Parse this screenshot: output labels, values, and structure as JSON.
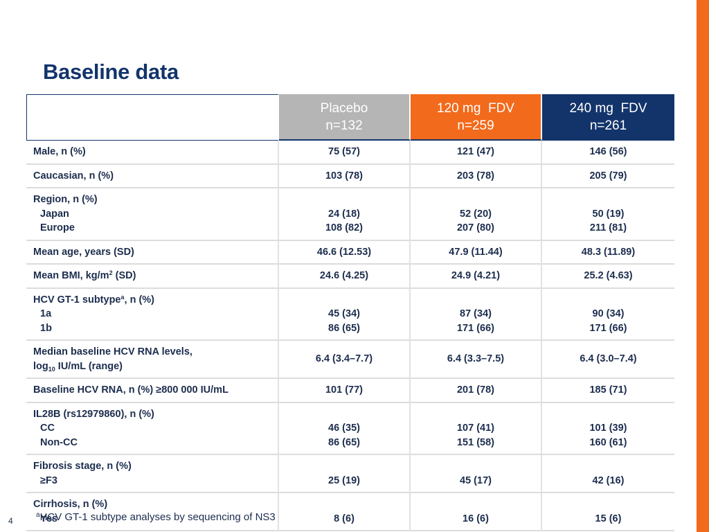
{
  "slide": {
    "title": "Baseline data",
    "page_number": "4",
    "footnote_marker": "a",
    "footnote_text": "HCV GT-1 subtype analyses by sequencing of NS3",
    "colors": {
      "title": "#13346b",
      "accent_bar": "#f26a1b",
      "placebo_header": "#b5b5b5",
      "fdv120_header": "#f26a1b",
      "fdv240_header": "#13346b"
    }
  },
  "table": {
    "headers": {
      "placebo": {
        "group": "Placebo",
        "n": "n=132"
      },
      "fdv120": {
        "group": "120 mg  FDV",
        "n": "n=259"
      },
      "fdv240": {
        "group": "240 mg  FDV",
        "n": "n=261"
      }
    },
    "rows": {
      "male": {
        "label": "Male, n (%)",
        "placebo": "75 (57)",
        "fdv120": "121 (47)",
        "fdv240": "146 (56)"
      },
      "caucasian": {
        "label": "Caucasian, n (%)",
        "placebo": "103 (78)",
        "fdv120": "203 (78)",
        "fdv240": "205 (79)"
      },
      "region": {
        "label": "Region, n (%)",
        "sub1_label": "Japan",
        "sub2_label": "Europe",
        "placebo": [
          "24 (18)",
          "108 (82)"
        ],
        "fdv120": [
          "52 (20)",
          "207 (80)"
        ],
        "fdv240": [
          "50 (19)",
          "211 (81)"
        ]
      },
      "age": {
        "label": "Mean age, years (SD)",
        "placebo": "46.6 (12.53)",
        "fdv120": "47.9 (11.44)",
        "fdv240": "48.3 (11.89)"
      },
      "bmi": {
        "label_pre": "Mean BMI, kg/m",
        "label_sup": "2",
        "label_post": " (SD)",
        "placebo": "24.6 (4.25)",
        "fdv120": "24.9 (4.21)",
        "fdv240": "25.2 (4.63)"
      },
      "hcv_subtype": {
        "label_pre": "HCV GT-1 subtype",
        "label_sup": "a",
        "label_post": ", n (%)",
        "sub1_label": "1a",
        "sub2_label": "1b",
        "placebo": [
          "45 (34)",
          "86 (65)"
        ],
        "fdv120": [
          "87 (34)",
          "171 (66)"
        ],
        "fdv240": [
          "90 (34)",
          "171 (66)"
        ]
      },
      "rna_levels": {
        "label_line1": "Median baseline HCV RNA levels,",
        "label_pre": "log",
        "label_sub": "10",
        "label_post": " IU/mL (range)",
        "placebo": "6.4 (3.4–7.7)",
        "fdv120": "6.4 (3.3–7.5)",
        "fdv240": "6.4 (3.0–7.4)"
      },
      "baseline_rna": {
        "label": "Baseline HCV RNA, n (%) ≥800 000 IU/mL",
        "placebo": "101 (77)",
        "fdv120": "201 (78)",
        "fdv240": "185 (71)"
      },
      "il28b": {
        "label": "IL28B (rs12979860), n (%)",
        "sub1_label": "CC",
        "sub2_label": "Non-CC",
        "placebo": [
          "46 (35)",
          "86 (65)"
        ],
        "fdv120": [
          "107 (41)",
          "151 (58)"
        ],
        "fdv240": [
          "101 (39)",
          "160 (61)"
        ]
      },
      "fibrosis": {
        "label": "Fibrosis stage, n (%)",
        "sub1_label": "≥F3",
        "placebo": "25 (19)",
        "fdv120": "45 (17)",
        "fdv240": "42 (16)"
      },
      "cirrhosis": {
        "label": "Cirrhosis, n (%)",
        "sub1_label": "Yes",
        "placebo": "8 (6)",
        "fdv120": "16 (6)",
        "fdv240": "15 (6)"
      }
    }
  }
}
